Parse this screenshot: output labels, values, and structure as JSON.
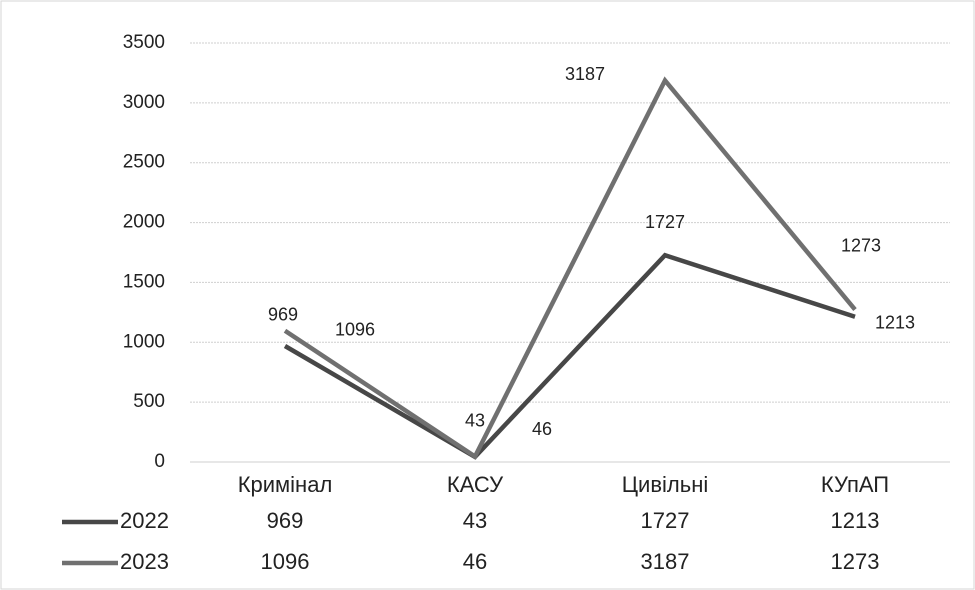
{
  "chart_data": {
    "type": "line",
    "categories": [
      "Кримінал",
      "КАСУ",
      "Цивільні",
      "КУпАП"
    ],
    "series": [
      {
        "name": "2022",
        "color": "#474747",
        "values": [
          969,
          43,
          1727,
          1213
        ]
      },
      {
        "name": "2023",
        "color": "#707070",
        "values": [
          1096,
          46,
          3187,
          1273
        ]
      }
    ],
    "ylim": [
      0,
      3500
    ],
    "yticks": [
      0,
      500,
      1000,
      1500,
      2000,
      2500,
      3000,
      3500
    ],
    "grid": true,
    "data_table": true
  }
}
